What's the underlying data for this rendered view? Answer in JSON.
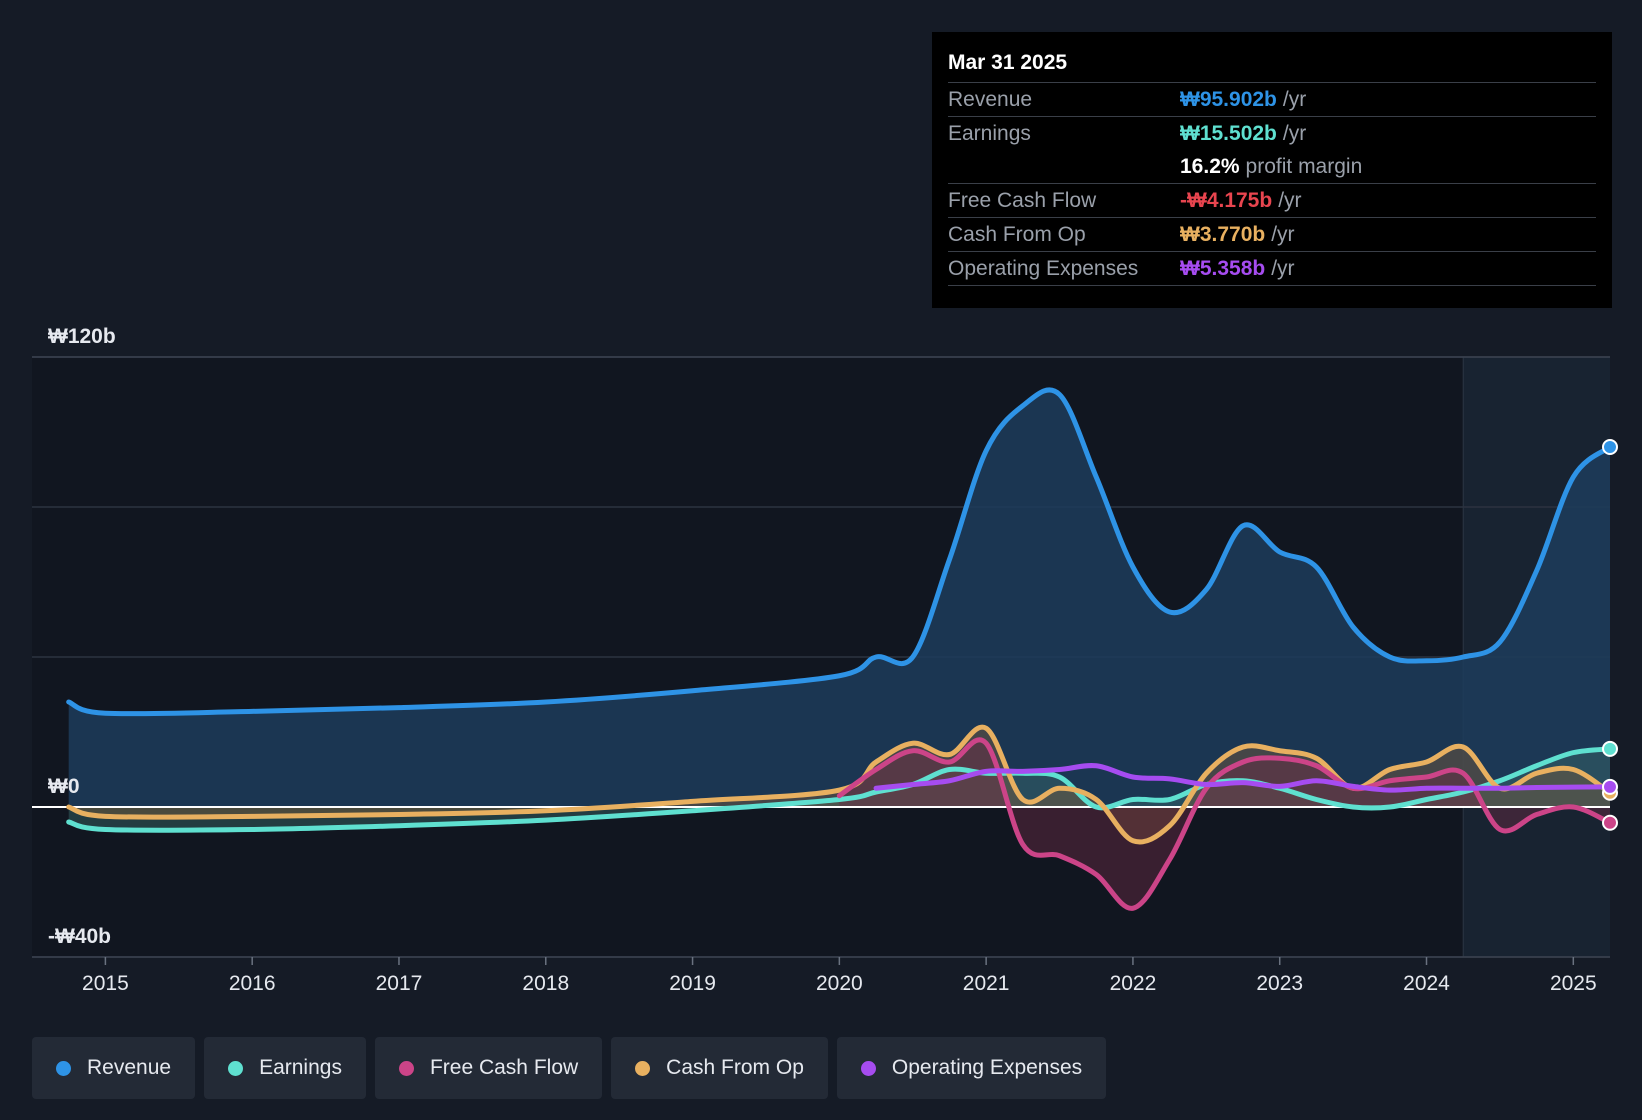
{
  "tooltip": {
    "date": "Mar 31 2025",
    "rows": [
      {
        "label": "Revenue",
        "value": "₩95.902b",
        "unit": "/yr",
        "color": "#2e93e6"
      },
      {
        "label": "Earnings",
        "value": "₩15.502b",
        "unit": "/yr",
        "color": "#5fe0d0"
      },
      {
        "label": "",
        "value": "16.2%",
        "unit": "profit margin",
        "color": "#ffffff"
      },
      {
        "label": "Free Cash Flow",
        "value": "-₩4.175b",
        "unit": "/yr",
        "color": "#e8454f"
      },
      {
        "label": "Cash From Op",
        "value": "₩3.770b",
        "unit": "/yr",
        "color": "#e8b060"
      },
      {
        "label": "Operating Expenses",
        "value": "₩5.358b",
        "unit": "/yr",
        "color": "#a64cf0"
      }
    ]
  },
  "legend": [
    {
      "label": "Revenue",
      "color": "#2e93e6"
    },
    {
      "label": "Earnings",
      "color": "#5fe0d0"
    },
    {
      "label": "Free Cash Flow",
      "color": "#cc4488"
    },
    {
      "label": "Cash From Op",
      "color": "#e8b060"
    },
    {
      "label": "Operating Expenses",
      "color": "#a64cf0"
    }
  ],
  "chart_data": {
    "type": "area",
    "title": "",
    "y_tick_labels": [
      "₩120b",
      "₩0",
      "-₩40b"
    ],
    "y_ticks": [
      120,
      0,
      -40
    ],
    "ylim": [
      -40,
      120
    ],
    "xlim": [
      2014.5,
      2025.25
    ],
    "x_tick_labels": [
      "2015",
      "2016",
      "2017",
      "2018",
      "2019",
      "2020",
      "2021",
      "2022",
      "2023",
      "2024",
      "2025"
    ],
    "x_ticks": [
      2015,
      2016,
      2017,
      2018,
      2019,
      2020,
      2021,
      2022,
      2023,
      2024,
      2025
    ],
    "forecast_start": 2024.25,
    "series": [
      {
        "name": "Revenue",
        "color": "#2e93e6",
        "x": [
          2014.75,
          2015.0,
          2016.0,
          2017.0,
          2018.0,
          2019.0,
          2020.0,
          2020.25,
          2020.5,
          2020.75,
          2021.0,
          2021.25,
          2021.5,
          2021.75,
          2022.0,
          2022.25,
          2022.5,
          2022.75,
          2023.0,
          2023.25,
          2023.5,
          2023.75,
          2024.0,
          2024.25,
          2024.5,
          2024.75,
          2025.0,
          2025.25
        ],
        "y": [
          28,
          25,
          25.5,
          26.5,
          28,
          31,
          35,
          40,
          40,
          66,
          95,
          107,
          110,
          88,
          64,
          52,
          58,
          75,
          68,
          64,
          48,
          40,
          39,
          40,
          44,
          63,
          88,
          96
        ]
      },
      {
        "name": "Earnings",
        "color": "#5fe0d0",
        "x": [
          2014.75,
          2015.0,
          2016.0,
          2017.0,
          2018.0,
          2019.0,
          2020.0,
          2020.25,
          2020.5,
          2020.75,
          2021.0,
          2021.25,
          2021.5,
          2021.75,
          2022.0,
          2022.25,
          2022.5,
          2022.75,
          2023.0,
          2023.25,
          2023.5,
          2023.75,
          2024.0,
          2024.25,
          2024.5,
          2024.75,
          2025.0,
          2025.25
        ],
        "y": [
          -4,
          -6,
          -6,
          -5,
          -3.5,
          -1,
          2,
          4,
          6,
          10,
          9,
          9,
          8,
          0,
          2,
          2,
          6,
          7,
          5,
          2,
          0,
          0,
          2,
          4,
          7,
          11,
          14.5,
          15.5
        ]
      },
      {
        "name": "Free Cash Flow",
        "color": "#cc4488",
        "x": [
          2020.0,
          2020.25,
          2020.5,
          2020.75,
          2021.0,
          2021.25,
          2021.5,
          2021.75,
          2022.0,
          2022.25,
          2022.5,
          2022.75,
          2023.0,
          2023.25,
          2023.5,
          2023.75,
          2024.0,
          2024.25,
          2024.5,
          2024.75,
          2025.0,
          2025.25
        ],
        "y": [
          3,
          10,
          15,
          12,
          17,
          -10,
          -13,
          -18,
          -27,
          -14,
          5,
          12,
          13,
          11,
          5,
          7,
          8,
          9,
          -6,
          -2,
          0,
          -4.2
        ]
      },
      {
        "name": "Cash From Op",
        "color": "#e8b060",
        "x": [
          2014.75,
          2015.0,
          2016.0,
          2017.0,
          2018.0,
          2019.0,
          2020.0,
          2020.25,
          2020.5,
          2020.75,
          2021.0,
          2021.25,
          2021.5,
          2021.75,
          2022.0,
          2022.25,
          2022.5,
          2022.75,
          2023.0,
          2023.25,
          2023.5,
          2023.75,
          2024.0,
          2024.25,
          2024.5,
          2024.75,
          2025.0,
          2025.25
        ],
        "y": [
          0,
          -2.5,
          -2.5,
          -2,
          -1,
          1.5,
          4.5,
          12,
          17,
          14,
          21,
          2,
          5,
          2,
          -9,
          -5,
          9,
          16,
          15,
          13,
          5,
          10,
          12,
          16,
          5,
          9,
          10,
          3.8
        ]
      },
      {
        "name": "Operating Expenses",
        "color": "#a64cf0",
        "x": [
          2020.25,
          2020.5,
          2020.75,
          2021.0,
          2021.25,
          2021.5,
          2021.75,
          2022.0,
          2022.25,
          2022.5,
          2022.75,
          2023.0,
          2023.25,
          2023.5,
          2023.75,
          2024.0,
          2024.25,
          2024.5,
          2024.75,
          2025.0,
          2025.25
        ],
        "y": [
          5,
          6,
          7,
          9.5,
          9.5,
          10,
          11,
          8,
          7.5,
          6,
          6.5,
          5.5,
          7,
          5.5,
          4.5,
          5,
          5,
          5,
          5.2,
          5.3,
          5.36
        ]
      }
    ],
    "highlighted_date": "Mar 31 2025"
  }
}
